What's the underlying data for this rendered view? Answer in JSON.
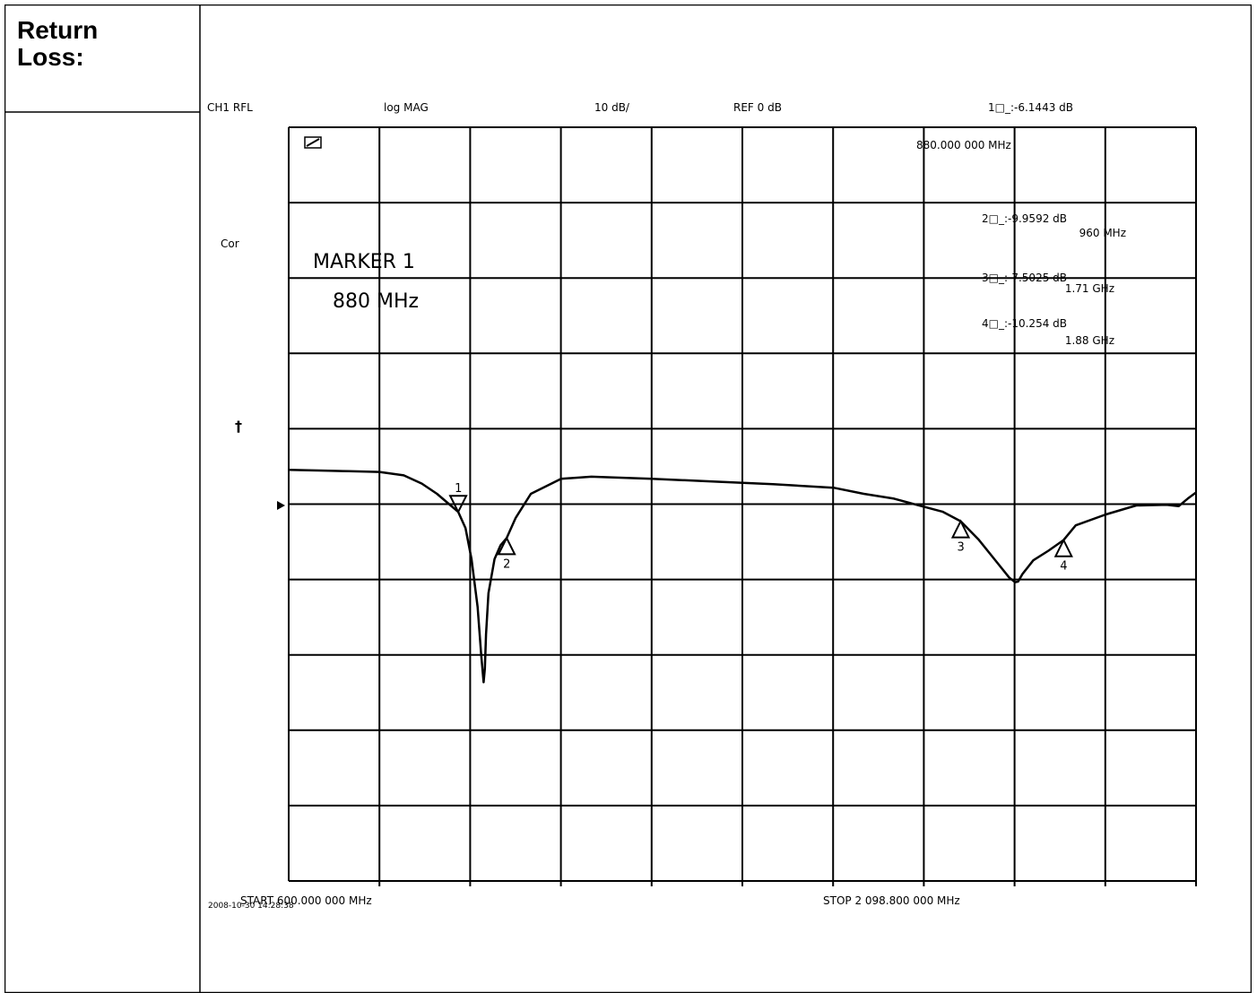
{
  "table": {
    "label_line1": "Return",
    "label_line2": "Loss:"
  },
  "chart_data": {
    "type": "line",
    "header": {
      "channel": "CH1 RFL",
      "format": "log MAG",
      "scale": "10 dB/",
      "reference": "REF 0 dB",
      "active_marker": "1□_:-6.1443 dB"
    },
    "active_marker_freq": "880.000 000 MHz",
    "side_label_cor": "Cor",
    "side_symbol": "†",
    "overlay_marker_title": "MARKER 1",
    "overlay_marker_freq": "880 MHz",
    "marker_readouts": [
      {
        "value": "2□_:-9.9592 dB",
        "freq": "960 MHz"
      },
      {
        "value": "3□_:-7.5025 dB",
        "freq": "1.71 GHz"
      },
      {
        "value": "4□_:-10.254 dB",
        "freq": "1.88 GHz"
      }
    ],
    "start_label": "START 600.000 000 MHz",
    "stop_label": "STOP 2 098.800 000 MHz",
    "timestamp": "2008-10-30 14:28:38",
    "x_unit": "MHz",
    "y_unit": "dB",
    "xlim": [
      600,
      2098.8
    ],
    "ylim": [
      -60,
      50
    ],
    "reference_level_db": 0,
    "grid": true,
    "markers": [
      {
        "id": "1",
        "x": 880,
        "y": -6.1443
      },
      {
        "id": "2",
        "x": 960,
        "y": -9.9592
      },
      {
        "id": "3",
        "x": 1710,
        "y": -7.5025
      },
      {
        "id": "4",
        "x": 1880,
        "y": -10.254
      }
    ],
    "series": [
      {
        "x": [
          600,
          650,
          700,
          750,
          790,
          820,
          845,
          865,
          880,
          892,
          902,
          912,
          918,
          922,
          924,
          926,
          930,
          940,
          950,
          960,
          975,
          1000,
          1050,
          1100,
          1200,
          1300,
          1400,
          1500,
          1550,
          1600,
          1650,
          1680,
          1710,
          1740,
          1770,
          1790,
          1800,
          1805,
          1812,
          1830,
          1855,
          1880,
          1900,
          1950,
          2000,
          2050,
          2070,
          2085,
          2098.8
        ],
        "y": [
          0,
          -0.1,
          -0.2,
          -0.3,
          -0.8,
          -2.0,
          -3.5,
          -5.0,
          -6.14,
          -8.5,
          -13,
          -20,
          -27,
          -31,
          -29,
          -24,
          -18,
          -13,
          -11,
          -9.96,
          -7,
          -3.5,
          -1.3,
          -1.0,
          -1.3,
          -1.7,
          -2.1,
          -2.6,
          -3.5,
          -4.2,
          -5.4,
          -6.1,
          -7.5,
          -10.2,
          -13.5,
          -15.7,
          -16.4,
          -16.3,
          -15.2,
          -13.2,
          -11.8,
          -10.25,
          -8.1,
          -6.5,
          -5.2,
          -5.1,
          -5.3,
          -4.2,
          -3.3
        ]
      }
    ]
  }
}
